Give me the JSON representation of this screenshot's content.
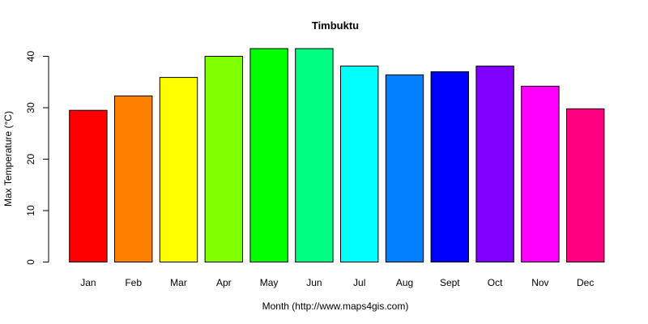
{
  "chart_data": {
    "type": "bar",
    "title": "Timbuktu",
    "xlabel": "Month (http://www.maps4gis.com)",
    "ylabel": "Max Temperature (°C)",
    "categories": [
      "Jan",
      "Feb",
      "Mar",
      "Apr",
      "May",
      "Jun",
      "Jul",
      "Aug",
      "Sept",
      "Oct",
      "Nov",
      "Dec"
    ],
    "values": [
      29.5,
      32.3,
      35.9,
      40.0,
      41.5,
      41.5,
      38.1,
      36.4,
      37.0,
      38.1,
      34.2,
      29.8
    ],
    "colors": [
      "#ff0000",
      "#ff8000",
      "#ffff00",
      "#80ff00",
      "#00ff00",
      "#00ff80",
      "#00ffff",
      "#0080ff",
      "#0000ff",
      "#8000ff",
      "#ff00ff",
      "#ff0080"
    ],
    "ylim": [
      0,
      41.5
    ],
    "yticks": [
      0,
      10,
      20,
      30,
      40
    ],
    "grid": false,
    "legend": "none"
  }
}
